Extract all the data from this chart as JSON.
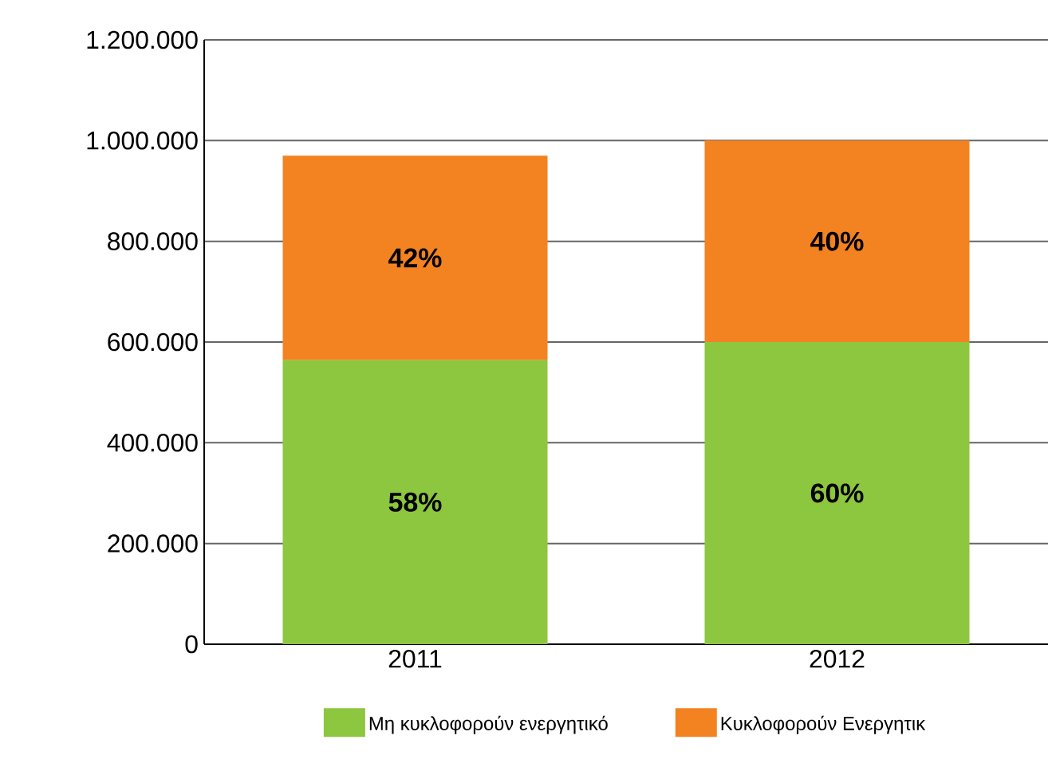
{
  "chart_data": {
    "type": "bar",
    "stacked": true,
    "categories": [
      "2011",
      "2012"
    ],
    "series": [
      {
        "name": "Μη κυκλοφορούν ενεργητικό",
        "color": "#8dc63f",
        "values": [
          564000,
          600000
        ]
      },
      {
        "name": "Κυκλοφορούν Ενεργητικ",
        "color": "#f38221",
        "values": [
          406000,
          400000
        ]
      }
    ],
    "annotations": [
      "58%",
      "60%",
      "42%",
      "40%"
    ],
    "ylim": [
      0,
      1200000
    ],
    "yticks": [
      {
        "value": 0,
        "label": "0"
      },
      {
        "value": 200000,
        "label": "200.000"
      },
      {
        "value": 400000,
        "label": "400.000"
      },
      {
        "value": 600000,
        "label": "600.000"
      },
      {
        "value": 800000,
        "label": "800.000"
      },
      {
        "value": 1000000,
        "label": "1.000.000"
      },
      {
        "value": 1200000,
        "label": "1.200.000"
      }
    ],
    "grid": "y",
    "legend": "bottom"
  }
}
